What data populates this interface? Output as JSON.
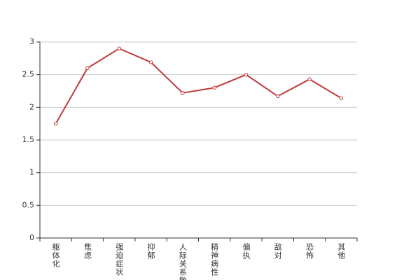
{
  "chart_data": {
    "type": "line",
    "categories": [
      "躯体化",
      "焦虑",
      "强迫症状",
      "抑郁",
      "人际关系敏感",
      "精神病性",
      "偏执",
      "敌对",
      "恐怖",
      "其他"
    ],
    "series": [
      {
        "color": "#c0393b",
        "values": [
          1.75,
          2.6,
          2.9,
          2.69,
          2.22,
          2.3,
          2.5,
          2.17,
          2.43,
          2.14
        ]
      }
    ],
    "ylim": [
      0,
      3
    ],
    "yticks": [
      0,
      0.5,
      1,
      1.5,
      2,
      2.5,
      3
    ],
    "grid": true
  }
}
